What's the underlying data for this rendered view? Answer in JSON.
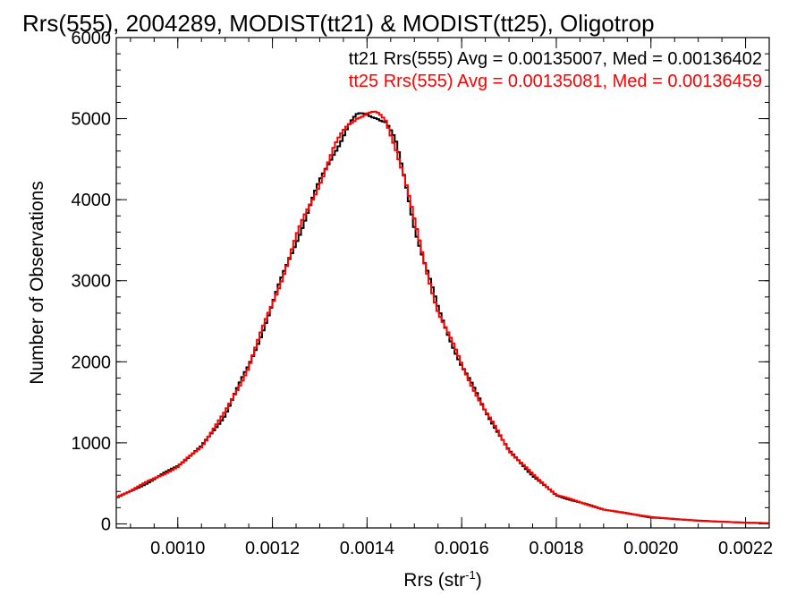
{
  "chart_data": {
    "type": "line",
    "title": "Rrs(555), 2004289, MODIST(tt21) & MODIST(tt25), Oligotrop",
    "xlabel": "Rrs (str",
    "xlabel_sup": "-1",
    "xlabel_tail": ")",
    "ylabel": "Number of Observations",
    "xlim": [
      0.00087,
      0.00225
    ],
    "ylim": [
      -50,
      6000
    ],
    "xticks": [
      0.001,
      0.0012,
      0.0014,
      0.0016,
      0.0018,
      0.002,
      0.0022
    ],
    "xtick_labels": [
      "0.0010",
      "0.0012",
      "0.0014",
      "0.0016",
      "0.0018",
      "0.0020",
      "0.0022"
    ],
    "yticks": [
      0,
      1000,
      2000,
      3000,
      4000,
      5000,
      6000
    ],
    "ytick_labels": [
      "0",
      "1000",
      "2000",
      "3000",
      "4000",
      "5000",
      "6000"
    ],
    "grid": false,
    "legend_position": "top-right",
    "series": [
      {
        "name": "tt21",
        "color": "#000000",
        "legend_text": "tt21 Rrs(555) Avg = 0.00135007, Med = 0.00136402",
        "x": [
          0.00087,
          0.0009,
          0.00095,
          0.001,
          0.00105,
          0.0011,
          0.00115,
          0.0012,
          0.00125,
          0.0013,
          0.00133,
          0.00136,
          0.00138,
          0.0014,
          0.00142,
          0.00144,
          0.00146,
          0.00148,
          0.0015,
          0.00152,
          0.00155,
          0.0016,
          0.00165,
          0.0017,
          0.00175,
          0.0018,
          0.0019,
          0.002,
          0.0021,
          0.0022,
          0.00225
        ],
        "y": [
          320,
          400,
          550,
          720,
          950,
          1350,
          1950,
          2700,
          3500,
          4200,
          4600,
          4900,
          5020,
          5060,
          5050,
          4950,
          4700,
          4250,
          3700,
          3250,
          2650,
          1950,
          1400,
          900,
          600,
          350,
          180,
          80,
          40,
          15,
          10
        ]
      },
      {
        "name": "tt25",
        "color": "#ff0000",
        "legend_text": "tt25 Rrs(555) Avg = 0.00135081, Med = 0.00136459",
        "x": [
          0.00087,
          0.0009,
          0.00095,
          0.001,
          0.00105,
          0.0011,
          0.00115,
          0.0012,
          0.00125,
          0.0013,
          0.00133,
          0.00136,
          0.00138,
          0.0014,
          0.00142,
          0.00144,
          0.00146,
          0.00148,
          0.0015,
          0.00152,
          0.00155,
          0.0016,
          0.00165,
          0.0017,
          0.00175,
          0.0018,
          0.0019,
          0.002,
          0.0021,
          0.0022,
          0.00225
        ],
        "y": [
          330,
          410,
          560,
          700,
          960,
          1370,
          1940,
          2720,
          3520,
          4230,
          4620,
          4920,
          5050,
          5070,
          5040,
          4960,
          4680,
          4270,
          3720,
          3240,
          2640,
          1960,
          1390,
          910,
          610,
          360,
          175,
          85,
          38,
          14,
          10
        ]
      }
    ]
  }
}
